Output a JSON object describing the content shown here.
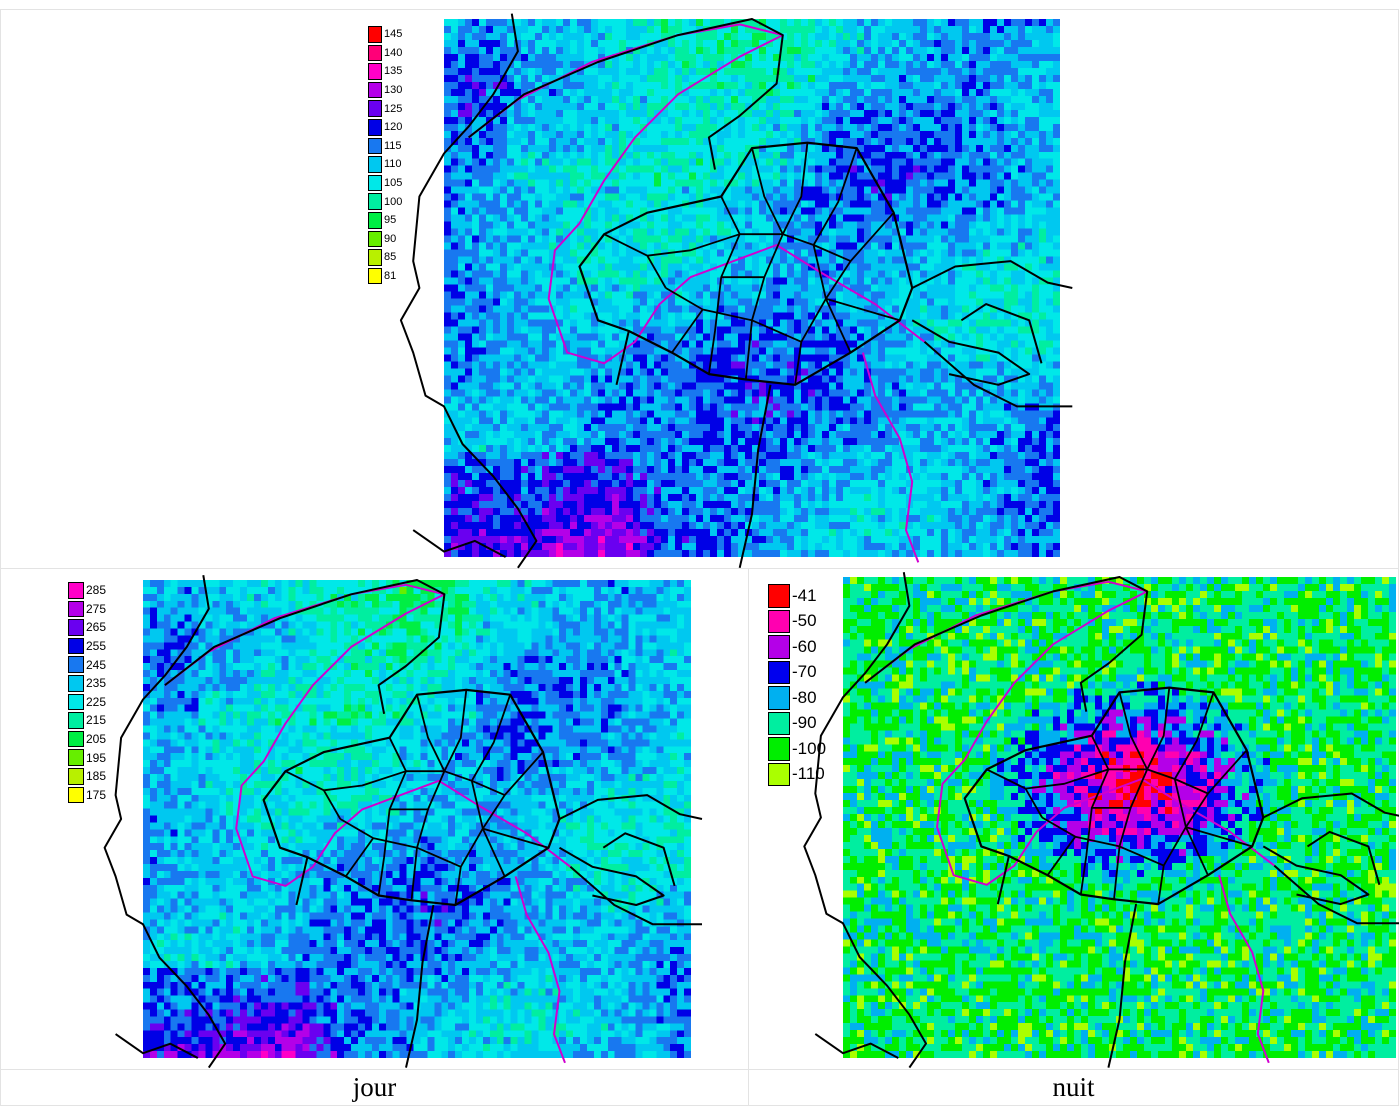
{
  "palettes": {
    "day": [
      "#ffff00",
      "#b8f000",
      "#66ee00",
      "#00ee44",
      "#00eea0",
      "#00e8e8",
      "#00c8f0",
      "#1878f0",
      "#0000e6",
      "#6a00f0",
      "#b400e8",
      "#ff00c8",
      "#ff0078",
      "#ff0000"
    ],
    "night": [
      "#aaff00",
      "#00ee00",
      "#00eea0",
      "#00b0f0",
      "#0000ee",
      "#b400e8",
      "#ff00b0",
      "#ff0000"
    ]
  },
  "maps": [
    {
      "id": "top",
      "legend": [
        "145",
        "140",
        "135",
        "130",
        "125",
        "120",
        "115",
        "110",
        "105",
        "100",
        "95",
        "90",
        "85",
        "81"
      ],
      "caption": ""
    },
    {
      "id": "jour",
      "legend": [
        "285",
        "275",
        "265",
        "255",
        "245",
        "235",
        "225",
        "215",
        "205",
        "195",
        "185",
        "175"
      ],
      "caption": "jour"
    },
    {
      "id": "nuit",
      "legend": [
        "-41",
        "-50",
        "-60",
        "-70",
        "-80",
        "-90",
        "-100",
        "-110"
      ],
      "caption": "nuit"
    }
  ]
}
